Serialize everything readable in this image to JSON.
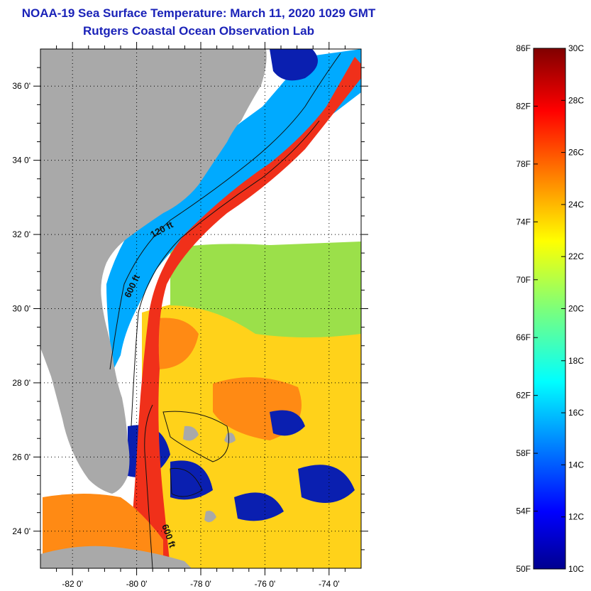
{
  "title": "NOAA-19 Sea Surface Temperature:  March 11, 2020 1029 GMT",
  "subtitle": "Rutgers Coastal Ocean Observation Lab",
  "map": {
    "lon_range": [
      -83,
      -73
    ],
    "lat_range": [
      23,
      37
    ],
    "lat_labels": [
      {
        "value": 36,
        "text": "36 0'"
      },
      {
        "value": 34,
        "text": "34 0'"
      },
      {
        "value": 32,
        "text": "32 0'"
      },
      {
        "value": 30,
        "text": "30 0'"
      },
      {
        "value": 28,
        "text": "28 0'"
      },
      {
        "value": 26,
        "text": "26 0'"
      },
      {
        "value": 24,
        "text": "24 0'"
      }
    ],
    "lon_labels": [
      {
        "value": -82,
        "text": "-82 0'"
      },
      {
        "value": -80,
        "text": "-80 0'"
      },
      {
        "value": -78,
        "text": "-78 0'"
      },
      {
        "value": -76,
        "text": "-76 0'"
      },
      {
        "value": -74,
        "text": "-74 0'"
      }
    ],
    "contour_labels": {
      "c120": "120 ft",
      "c600a": "600 ft",
      "c600b": "600 ft"
    },
    "colors": {
      "land": "#a9a9a9",
      "clouds": "#ffffff",
      "cold": "#0a1fb0",
      "cool": "#00aaff",
      "mild": "#9be04a",
      "warm": "#ffd21a",
      "hot": "#ff8a14",
      "gulfstream": "#f0301a"
    }
  },
  "colorbar": {
    "fahrenheit": [
      "86F",
      "82F",
      "78F",
      "74F",
      "70F",
      "66F",
      "62F",
      "58F",
      "54F",
      "50F"
    ],
    "celsius": [
      "30C",
      "28C",
      "26C",
      "24C",
      "22C",
      "20C",
      "18C",
      "16C",
      "14C",
      "12C",
      "10C"
    ]
  }
}
